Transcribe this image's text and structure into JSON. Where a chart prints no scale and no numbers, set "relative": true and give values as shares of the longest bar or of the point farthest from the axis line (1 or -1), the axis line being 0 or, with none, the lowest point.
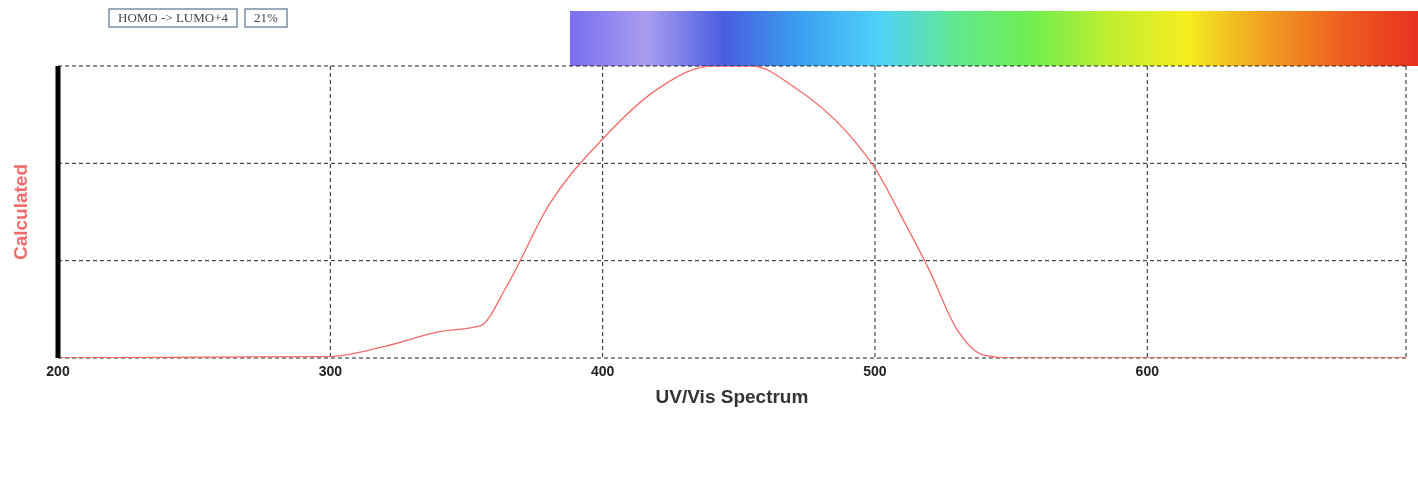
{
  "chart_data": {
    "type": "line",
    "xlabel": "UV/Vis Spectrum",
    "ylabel": "Calculated",
    "relative": true,
    "xlim": [
      200,
      695
    ],
    "xticks": [
      200,
      300,
      400,
      500,
      600
    ],
    "grid": true,
    "line_style": "solid",
    "marker": "none",
    "annotations": [
      "HOMO -> LUMO+4",
      "21%"
    ],
    "series": [
      {
        "color": "#f26b6b",
        "x": [
          200,
          300,
          320,
          340,
          355,
          365,
          380,
          400,
          420,
          440,
          455,
          470,
          490,
          500,
          510,
          520,
          530,
          540,
          550,
          600,
          695
        ],
        "values": [
          0,
          0.005,
          0.04,
          0.09,
          0.11,
          0.25,
          0.52,
          0.75,
          0.92,
          1.0,
          1.0,
          0.93,
          0.77,
          0.65,
          0.48,
          0.3,
          0.1,
          0.01,
          0,
          0,
          0
        ]
      }
    ]
  }
}
